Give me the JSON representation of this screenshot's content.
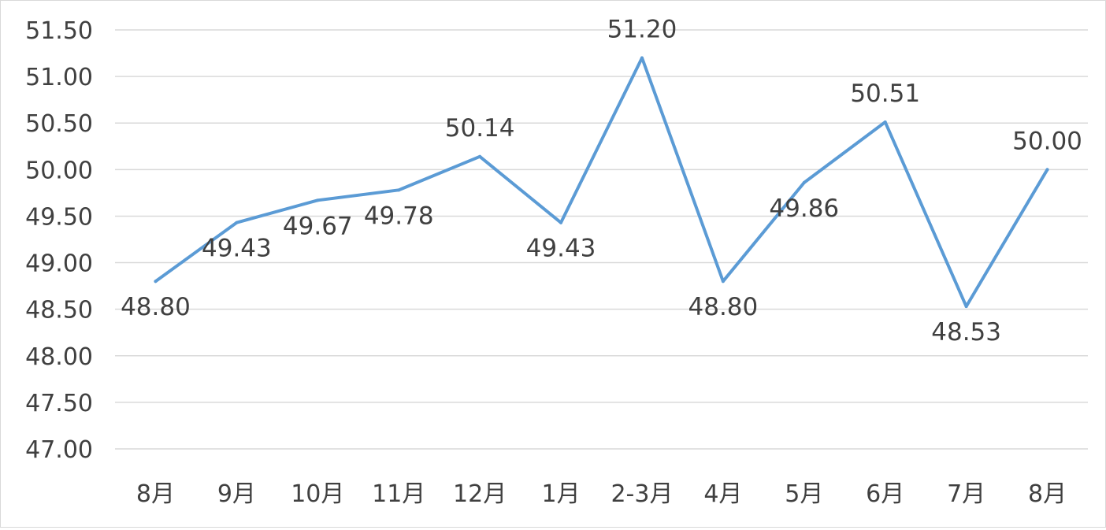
{
  "chart_data": {
    "type": "line",
    "title": "",
    "xlabel": "",
    "ylabel": "",
    "categories": [
      "8月",
      "9月",
      "10月",
      "11月",
      "12月",
      "1月",
      "2-3月",
      "4月",
      "5月",
      "6月",
      "7月",
      "8月"
    ],
    "series": [
      {
        "values": [
          48.8,
          49.43,
          49.67,
          49.78,
          50.14,
          49.43,
          51.2,
          48.8,
          49.86,
          50.51,
          48.53,
          50.0
        ],
        "data_labels": [
          "48.80",
          "49.43",
          "49.67",
          "49.78",
          "50.14",
          "49.43",
          "51.20",
          "48.80",
          "49.86",
          "50.51",
          "48.53",
          "50.00"
        ],
        "color": "#5b9bd5"
      }
    ],
    "ylim": [
      47.0,
      51.5
    ],
    "yticks": [
      "47.00",
      "47.50",
      "48.00",
      "48.50",
      "49.00",
      "49.50",
      "50.00",
      "50.50",
      "51.00",
      "51.50"
    ],
    "grid": true,
    "legend": "none"
  }
}
